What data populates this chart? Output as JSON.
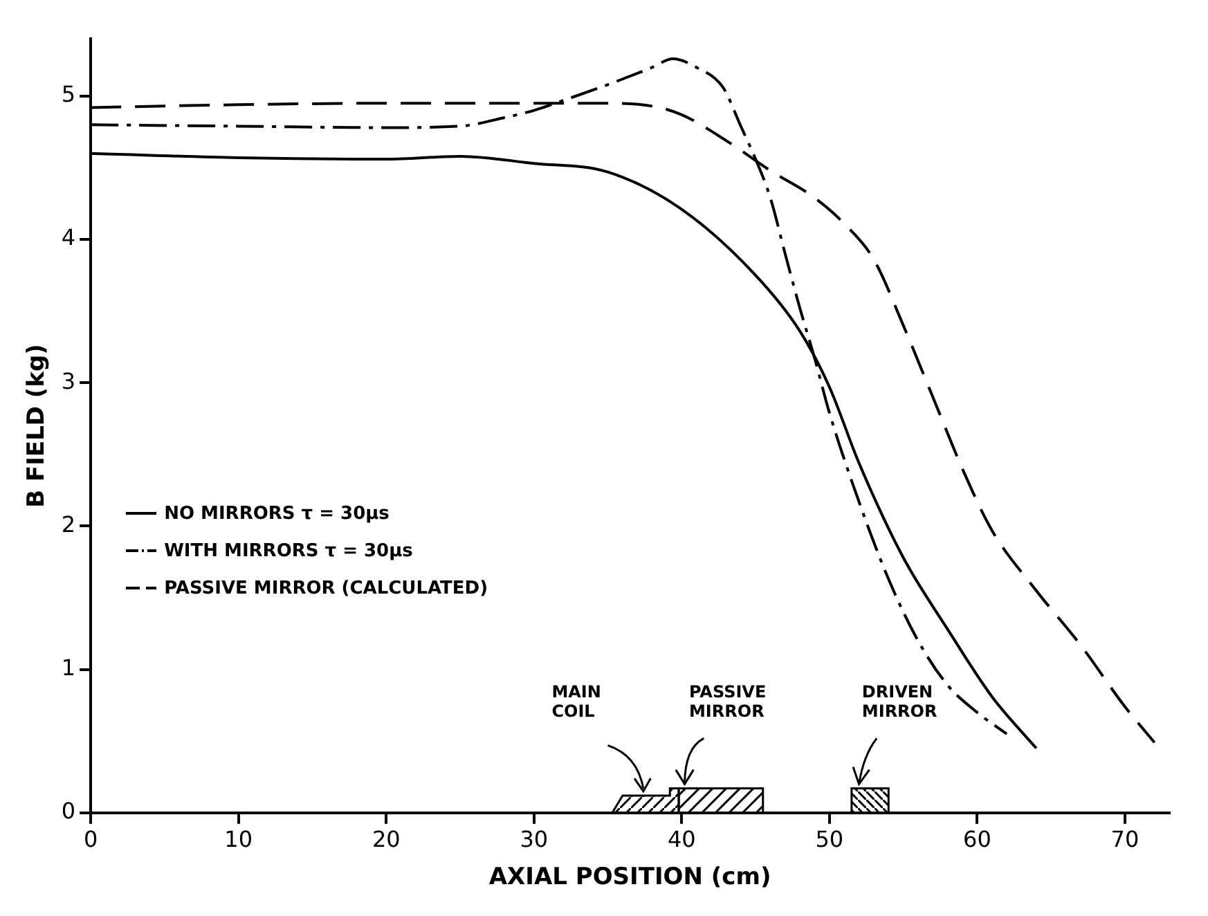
{
  "chart_data": {
    "type": "line",
    "xlabel": "AXIAL POSITION (cm)",
    "ylabel": "B FIELD (kg)",
    "xlim": [
      0,
      73
    ],
    "xticks": [
      0,
      10,
      20,
      30,
      40,
      50,
      60,
      70
    ],
    "ylim": [
      0,
      5.4
    ],
    "yticks": [
      0,
      1,
      2,
      3,
      4,
      5
    ],
    "grid": false,
    "legend": "left",
    "marker": "none",
    "annotations": [
      "MAIN COIL",
      "PASSIVE MIRROR",
      "DRIVEN MIRROR"
    ],
    "series": [
      {
        "name": "NO MIRRORS τ = 30μs",
        "color": "#000000",
        "line_style": "solid",
        "x": [
          0,
          10,
          20,
          25,
          30,
          35,
          40,
          45,
          48,
          50,
          52,
          55,
          58,
          61,
          64
        ],
        "values": [
          4.6,
          4.57,
          4.56,
          4.58,
          4.53,
          4.47,
          4.21,
          3.75,
          3.36,
          2.97,
          2.44,
          1.78,
          1.28,
          0.81,
          0.45
        ]
      },
      {
        "name": "WITH MIRRORS τ = 30μs",
        "color": "#000000",
        "line_style": "dashdot",
        "x": [
          0,
          10,
          20,
          25,
          28,
          30,
          32,
          35,
          38,
          39.4,
          41,
          42.8,
          44,
          45,
          46,
          47,
          48,
          49,
          50,
          52,
          54,
          56,
          58,
          60,
          62
        ],
        "values": [
          4.8,
          4.79,
          4.78,
          4.79,
          4.85,
          4.9,
          4.97,
          5.08,
          5.2,
          5.26,
          5.2,
          5.06,
          4.79,
          4.56,
          4.29,
          3.9,
          3.52,
          3.17,
          2.79,
          2.17,
          1.63,
          1.2,
          0.89,
          0.7,
          0.55
        ]
      },
      {
        "name": "PASSIVE MIRROR (CALCULATED)",
        "color": "#000000",
        "line_style": "dashed",
        "x": [
          0,
          10,
          20,
          30,
          35,
          38,
          40,
          43,
          46,
          49,
          51,
          53,
          55,
          57,
          59,
          61,
          64,
          67,
          70,
          72
        ],
        "values": [
          4.92,
          4.94,
          4.95,
          4.95,
          4.95,
          4.93,
          4.87,
          4.69,
          4.48,
          4.29,
          4.11,
          3.86,
          3.4,
          2.9,
          2.4,
          1.97,
          1.55,
          1.17,
          0.74,
          0.49
        ]
      }
    ]
  }
}
